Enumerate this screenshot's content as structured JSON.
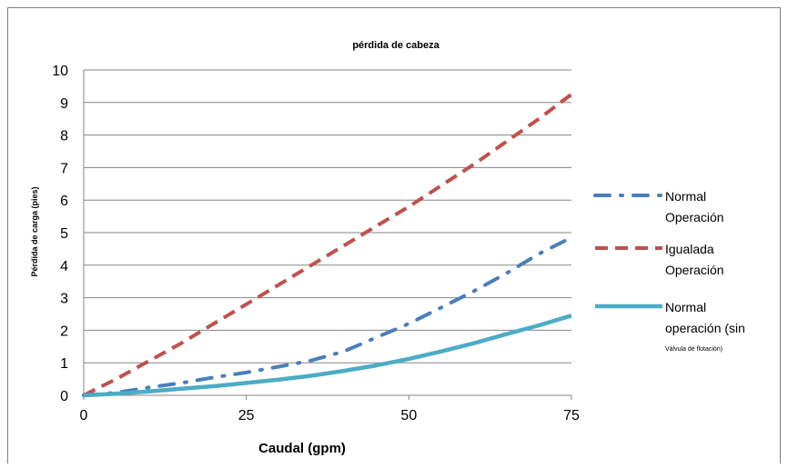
{
  "chart_data": {
    "type": "line",
    "title": "pérdida de cabeza",
    "xlabel": "Caudal (gpm)",
    "ylabel": "Pérdida de carga (pies)",
    "xlim": [
      0,
      75
    ],
    "ylim": [
      0,
      10
    ],
    "x_ticks": [
      "0",
      "25",
      "50",
      "75"
    ],
    "y_ticks": [
      "0",
      "1",
      "2",
      "3",
      "4",
      "5",
      "6",
      "7",
      "8",
      "9",
      "10"
    ],
    "grid": "horizontal",
    "legend_position": "right",
    "series": [
      {
        "name": "Normal Operación",
        "name_lines": [
          "Normal",
          "Operación"
        ],
        "color": "#4a7ebb",
        "style": "dash-dot",
        "x": [
          0,
          5,
          10,
          15,
          20,
          25,
          30,
          35,
          40,
          45,
          50,
          55,
          60,
          65,
          70,
          75
        ],
        "y": [
          0,
          0.08,
          0.24,
          0.38,
          0.55,
          0.7,
          0.88,
          1.07,
          1.35,
          1.78,
          2.2,
          2.7,
          3.2,
          3.75,
          4.35,
          4.85
        ]
      },
      {
        "name": "Igualada Operación",
        "name_lines": [
          "Igualada",
          "Operación"
        ],
        "color": "#c0504d",
        "style": "dashed",
        "x": [
          0,
          5,
          10,
          15,
          20,
          25,
          30,
          35,
          40,
          45,
          50,
          55,
          60,
          65,
          70,
          75
        ],
        "y": [
          0,
          0.5,
          1.05,
          1.6,
          2.2,
          2.8,
          3.4,
          4.0,
          4.6,
          5.2,
          5.8,
          6.45,
          7.1,
          7.8,
          8.5,
          9.25
        ]
      },
      {
        "name": "Normal operación (sin Válvula de flotación)",
        "name_lines": [
          "Normal",
          "operación (sin",
          "Válvula de flotación)"
        ],
        "color": "#4bacc6",
        "style": "solid",
        "x": [
          0,
          5,
          10,
          15,
          20,
          25,
          30,
          35,
          40,
          45,
          50,
          55,
          60,
          65,
          70,
          75
        ],
        "y": [
          0,
          0.05,
          0.12,
          0.2,
          0.28,
          0.38,
          0.48,
          0.6,
          0.75,
          0.92,
          1.12,
          1.35,
          1.6,
          1.88,
          2.15,
          2.45
        ]
      }
    ]
  }
}
